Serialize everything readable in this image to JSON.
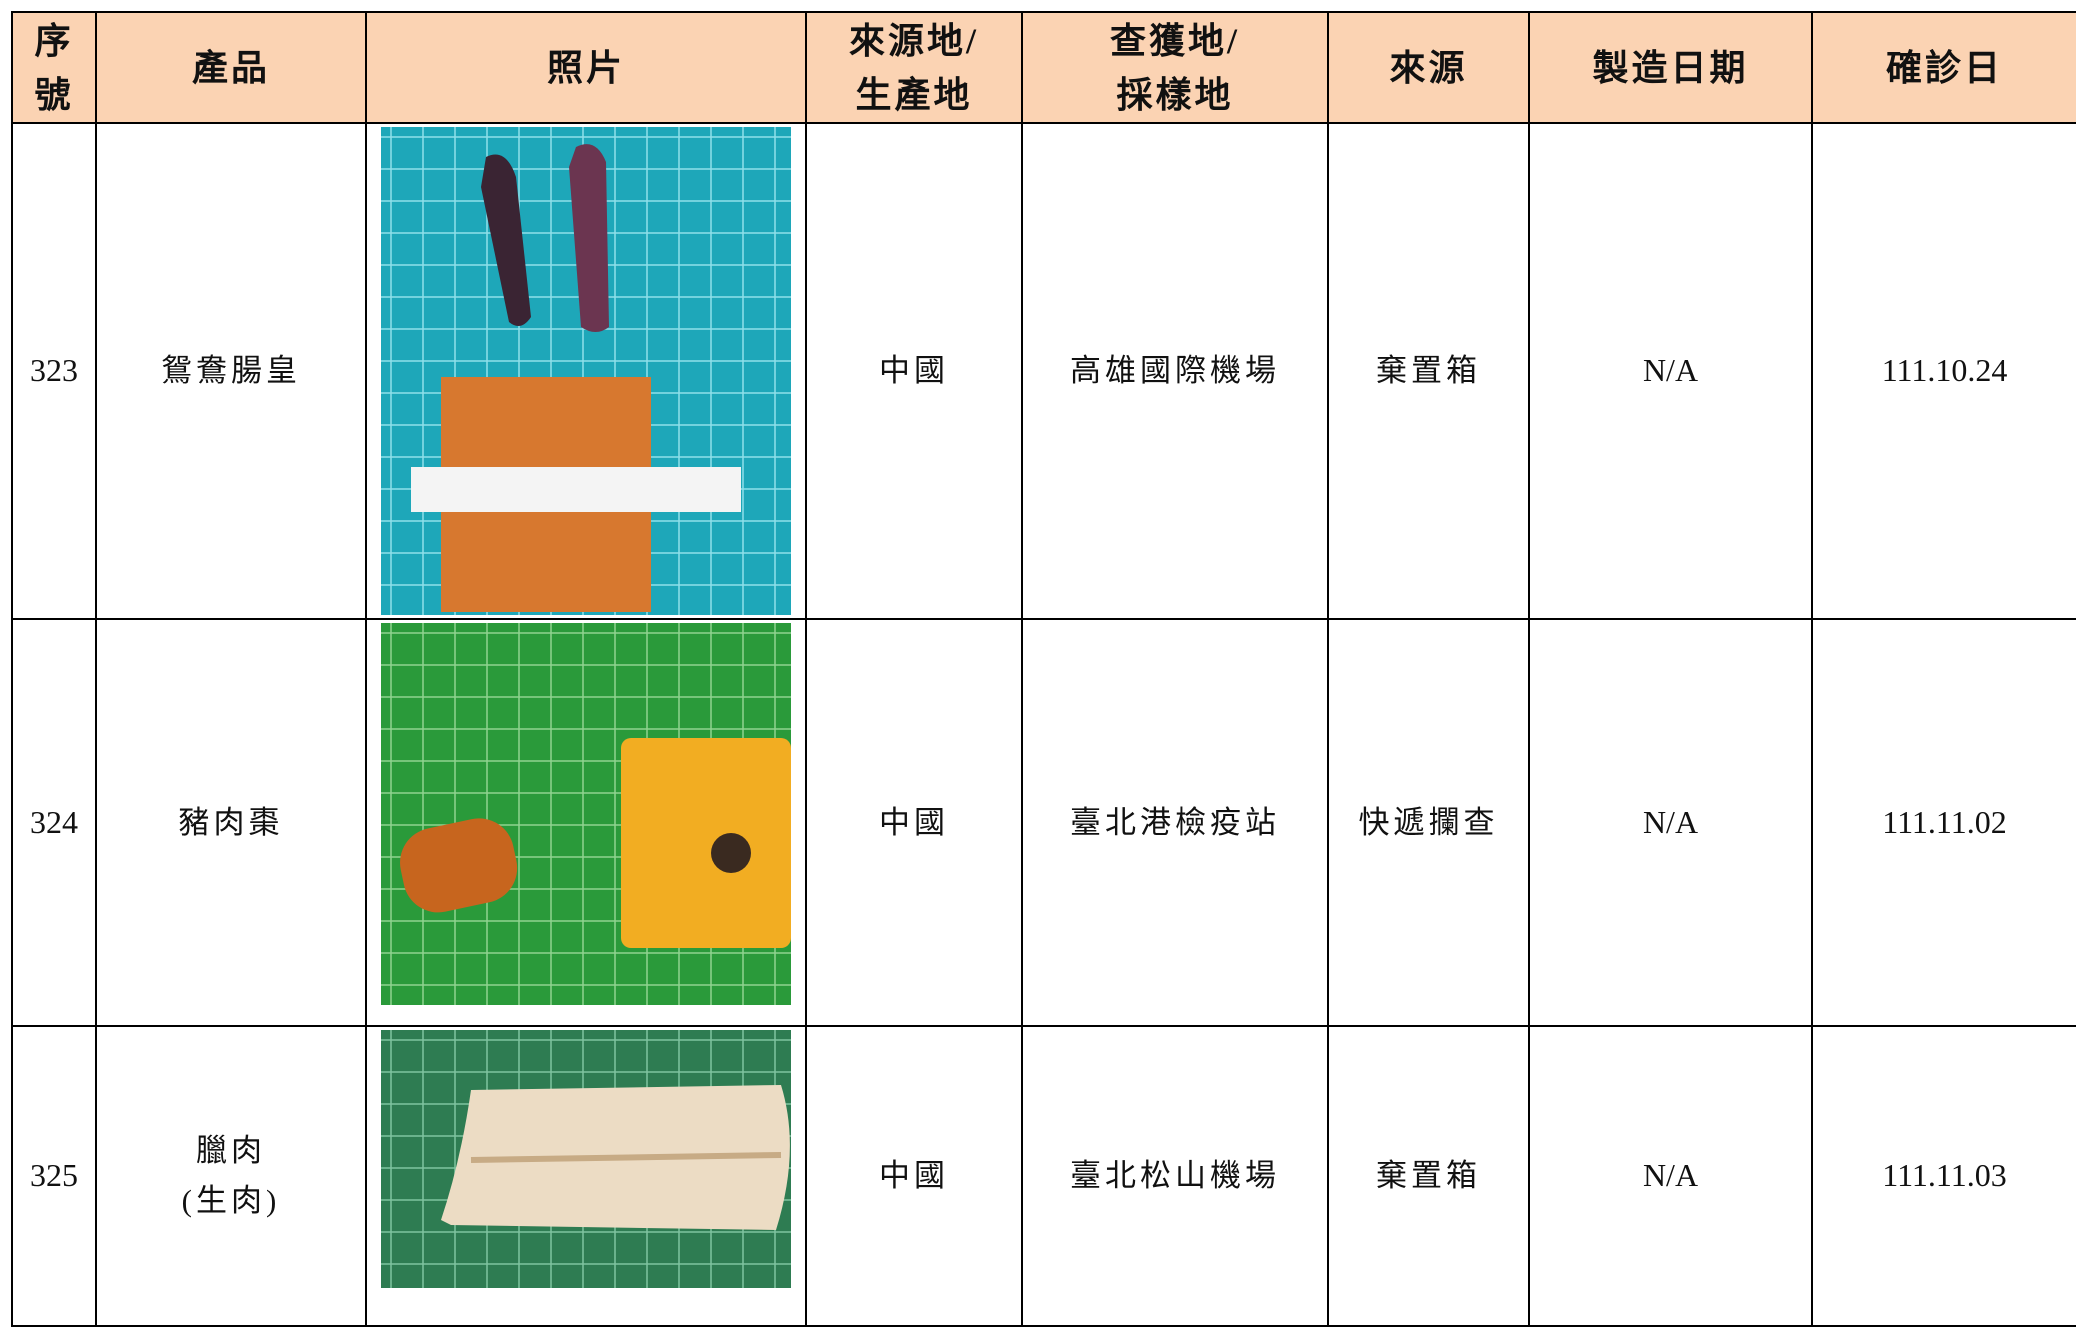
{
  "table": {
    "headers": [
      [
        "序",
        "號"
      ],
      [
        "產品"
      ],
      [
        "照片"
      ],
      [
        "來源地/",
        "生產地"
      ],
      [
        "查獲地/",
        "採樣地"
      ],
      [
        "來源"
      ],
      [
        "製造日期"
      ],
      [
        "確診日"
      ]
    ],
    "rows": [
      {
        "no": "323",
        "product": [
          "鴛鴦腸皇"
        ],
        "origin": "中國",
        "seized_at": "高雄國際機場",
        "source": "棄置箱",
        "manufacture_date": "N/A",
        "diagnosis_date": "111.10.24"
      },
      {
        "no": "324",
        "product": [
          "豬肉棗"
        ],
        "origin": "中國",
        "seized_at": "臺北港檢疫站",
        "source": "快遞攔查",
        "manufacture_date": "N/A",
        "diagnosis_date": "111.11.02"
      },
      {
        "no": "325",
        "product": [
          "臘肉",
          "(生肉)"
        ],
        "origin": "中國",
        "seized_at": "臺北松山機場",
        "source": "棄置箱",
        "manufacture_date": "N/A",
        "diagnosis_date": "111.11.03"
      }
    ]
  }
}
